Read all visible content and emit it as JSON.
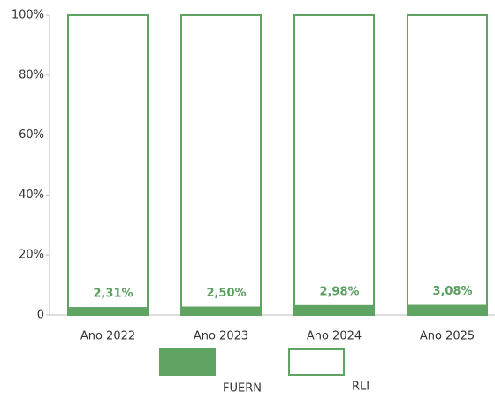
{
  "chart_data": {
    "type": "stacked_bar",
    "categories": [
      "Ano 2022",
      "Ano 2023",
      "Ano 2024",
      "Ano 2025"
    ],
    "series": [
      {
        "name": "FUERN",
        "color": "#5fa463",
        "fill": true,
        "values": [
          2.31,
          2.5,
          2.98,
          3.08
        ],
        "value_labels": [
          "2,31%",
          "2,50%",
          "2,98%",
          "3,08%"
        ]
      },
      {
        "name": "RLI",
        "color": "#5fa463",
        "fill": false,
        "values": [
          97.69,
          97.5,
          97.02,
          96.92
        ]
      }
    ],
    "ylim": [
      0,
      100
    ],
    "yticks": [
      0,
      {
        "value": 20,
        "label": "20%"
      },
      {
        "value": 40,
        "label": "40%"
      },
      {
        "value": 60,
        "label": "60%"
      },
      {
        "value": 80,
        "label": "80%"
      },
      {
        "value": 100,
        "label": "100%"
      }
    ],
    "legend": "bottom"
  }
}
